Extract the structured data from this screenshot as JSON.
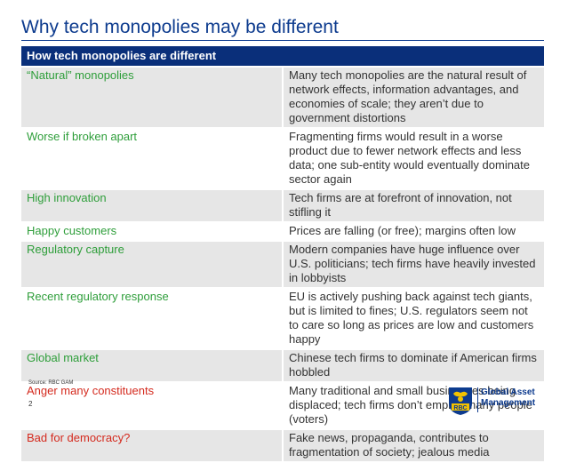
{
  "slide": {
    "title": "Why tech monopolies may be different",
    "source": "Source: RBC GAM",
    "page_number": "2"
  },
  "table": {
    "header": "How tech monopolies are different",
    "rows": [
      {
        "label": "“Natural” monopolies",
        "label_color": "#2e9e3a",
        "text": "Many tech monopolies are the natural result of network effects, information advantages, and economies of scale; they aren’t due to government distortions"
      },
      {
        "label": "Worse if broken apart",
        "label_color": "#2e9e3a",
        "text": "Fragmenting firms would result in a worse product due to fewer network effects and less data; one sub-entity would eventually dominate sector again"
      },
      {
        "label": "High innovation",
        "label_color": "#2e9e3a",
        "text": "Tech firms are at forefront of innovation, not stifling it"
      },
      {
        "label": "Happy customers",
        "label_color": "#2e9e3a",
        "text": "Prices are falling (or free); margins often low"
      },
      {
        "label": "Regulatory capture",
        "label_color": "#2e9e3a",
        "text": "Modern companies have huge influence over U.S. politicians; tech firms have heavily invested in lobbyists"
      },
      {
        "label": "Recent regulatory response",
        "label_color": "#2e9e3a",
        "text": "EU is actively pushing back against tech giants, but is limited to fines; U.S. regulators seem not to care so long as prices are low and customers happy"
      },
      {
        "label": "Global market",
        "label_color": "#2e9e3a",
        "text": "Chinese tech firms to dominate if American firms hobbled"
      },
      {
        "label": "Anger many constituents",
        "label_color": "#d42a1e",
        "text": "Many traditional and small businesses being displaced; tech firms don’t employ many people (voters)"
      },
      {
        "label": "Bad for democracy?",
        "label_color": "#d42a1e",
        "text": "Fake news, propaganda, contributes to fragmentation of society; jealous media"
      }
    ]
  },
  "logo": {
    "brand": "RBC",
    "line1": "Global Asset",
    "line2": "Management",
    "colors": {
      "blue": "#0d3b8e",
      "yellow": "#f2c200"
    }
  }
}
